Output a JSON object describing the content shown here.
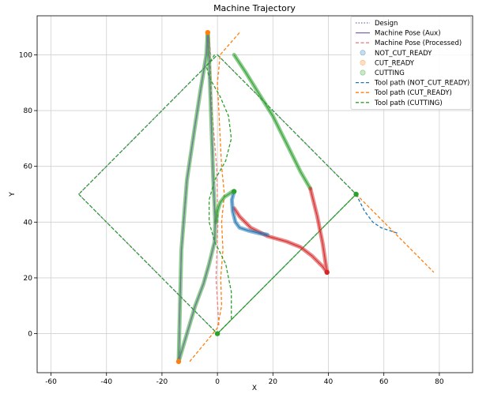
{
  "chart_data": {
    "type": "line",
    "title": "Machine Trajectory",
    "xlabel": "X",
    "ylabel": "Y",
    "xlim": [
      -65,
      92
    ],
    "ylim": [
      -14,
      114
    ],
    "xticks": [
      -60,
      -40,
      -20,
      0,
      20,
      40,
      60,
      80
    ],
    "yticks": [
      0,
      20,
      40,
      60,
      80,
      100
    ],
    "grid": true,
    "legend_position": "top-right",
    "legend": [
      "Design",
      "Machine Pose (Aux)",
      "Machine Pose (Processed)",
      "NOT_CUT_READY",
      "CUT_READY",
      "CUTTING",
      "Tool path (NOT_CUT_READY)",
      "Tool path (CUT_READY)",
      "Tool path (CUTTING)"
    ],
    "series": [
      {
        "name": "Design",
        "style": "dotted",
        "color": "#7b68b0",
        "x": [
          0,
          50,
          0,
          -50,
          0
        ],
        "y": [
          0,
          50,
          100,
          50,
          0
        ]
      },
      {
        "name": "Machine Pose (Processed)",
        "style": "dashed",
        "color": "#f08080",
        "x": [
          0.5,
          -0.5,
          0.2,
          -0.3,
          -2,
          -2.5,
          -3,
          -2.5
        ],
        "y": [
          3,
          20,
          40,
          60,
          80,
          95,
          108,
          100
        ]
      },
      {
        "name": "Tool path (NOT_CUT_READY)",
        "style": "dashed",
        "color": "#1f77b4",
        "x": [
          50,
          53,
          56,
          59,
          62,
          65
        ],
        "y": [
          50,
          44,
          40,
          38,
          37,
          36
        ]
      },
      {
        "name": "Tool path (CUT_READY)",
        "style": "dashed",
        "color": "#ff7f0e",
        "x": [
          50,
          78
        ],
        "y": [
          50,
          22
        ]
      },
      {
        "name": "Tool path (CUT_READY)",
        "style": "dashed",
        "color": "#ff7f0e",
        "x": [
          -10,
          0,
          1.5,
          1.2,
          2.0,
          1.5,
          2.5,
          1.5,
          1.0,
          0.5,
          0,
          1,
          8
        ],
        "y": [
          -10,
          2,
          10,
          20,
          30,
          40,
          50,
          60,
          70,
          80,
          90,
          100,
          108
        ]
      },
      {
        "name": "Tool path (CUTTING)",
        "style": "dashed",
        "color": "#2ca02c",
        "x": [
          0,
          50,
          0,
          -50,
          0
        ],
        "y": [
          0,
          50,
          100,
          50,
          0
        ]
      },
      {
        "name": "Tool path (CUTTING)",
        "style": "dashed",
        "color": "#2ca02c",
        "x": [
          0,
          5,
          5,
          3,
          -1,
          -3,
          -3,
          -1,
          3,
          5,
          4,
          1,
          -3,
          -4,
          -1
        ],
        "y": [
          0,
          5,
          15,
          25,
          33,
          40,
          48,
          55,
          62,
          70,
          78,
          85,
          92,
          96,
          100
        ]
      },
      {
        "name": "Tool path (CUTTING)",
        "style": "solid",
        "color": "#2ca02c",
        "x": [
          0,
          50
        ],
        "y": [
          0,
          50
        ]
      },
      {
        "name": "CUTTING",
        "style": "thick",
        "color": "#2ca02c",
        "x": [
          -14,
          -13.5,
          -13,
          -11,
          -8,
          -6,
          -4,
          -3.5
        ],
        "y": [
          -10,
          10,
          30,
          55,
          75,
          88,
          100,
          108
        ]
      },
      {
        "name": "CUTTING",
        "style": "thick",
        "color": "#2ca02c",
        "x": [
          -3.5,
          -3,
          -2.5,
          -2,
          -1.5,
          -1,
          -0.8,
          -1,
          -3,
          -5,
          -8,
          -11,
          -14
        ],
        "y": [
          108,
          98,
          85,
          70,
          55,
          45,
          40,
          33,
          25,
          18,
          10,
          0,
          -10
        ]
      },
      {
        "name": "CUTTING",
        "style": "thick",
        "color": "#2ca02c",
        "x": [
          -0.5,
          0,
          1,
          2.5,
          4,
          5.5
        ],
        "y": [
          40,
          44,
          47,
          49,
          50,
          51
        ]
      },
      {
        "name": "CUTTING",
        "style": "thick",
        "color": "#2ca02c",
        "x": [
          6,
          10,
          15,
          20,
          25,
          30,
          33.5
        ],
        "y": [
          100,
          94,
          86,
          78,
          68,
          58,
          52
        ]
      },
      {
        "name": "CUT_READY",
        "style": "thick",
        "color": "#d62728",
        "x": [
          33.5,
          36,
          38,
          39.5,
          38,
          34,
          30,
          25,
          18,
          12,
          8,
          6
        ],
        "y": [
          52,
          42,
          32,
          22,
          24,
          28,
          31,
          33,
          35,
          38,
          42,
          45
        ]
      },
      {
        "name": "NOT_CUT_READY",
        "style": "thick",
        "color": "#1f77b4",
        "x": [
          6,
          5.2,
          5.5,
          6.5,
          8,
          11,
          15,
          18
        ],
        "y": [
          51,
          48,
          44,
          40,
          38,
          37,
          36,
          35.5
        ]
      },
      {
        "name": "Machine Pose (Aux)",
        "style": "solid",
        "color": "#7b68b0",
        "x": [
          -14,
          -13.5,
          -13,
          -11,
          -8,
          -6,
          -4,
          -3.5,
          -3,
          -2.5,
          -2,
          -1.5,
          -1,
          -0.8,
          -1,
          -3,
          -5,
          -8,
          -11,
          -14
        ],
        "y": [
          -10,
          10,
          30,
          55,
          75,
          88,
          100,
          108,
          98,
          85,
          70,
          55,
          45,
          40,
          33,
          25,
          18,
          10,
          0,
          -10
        ]
      }
    ],
    "markers": [
      {
        "name": "endpoint",
        "color": "#ff7f0e",
        "x": -3.5,
        "y": 108
      },
      {
        "name": "endpoint",
        "color": "#ff7f0e",
        "x": -14,
        "y": -10
      },
      {
        "name": "endpoint",
        "color": "#d62728",
        "x": 39.5,
        "y": 22
      },
      {
        "name": "endpoint",
        "color": "#2ca02c",
        "x": 6,
        "y": 51
      },
      {
        "name": "endpoint",
        "color": "#2ca02c",
        "x": 0,
        "y": 0
      },
      {
        "name": "endpoint",
        "color": "#2ca02c",
        "x": 50,
        "y": 50
      }
    ]
  }
}
